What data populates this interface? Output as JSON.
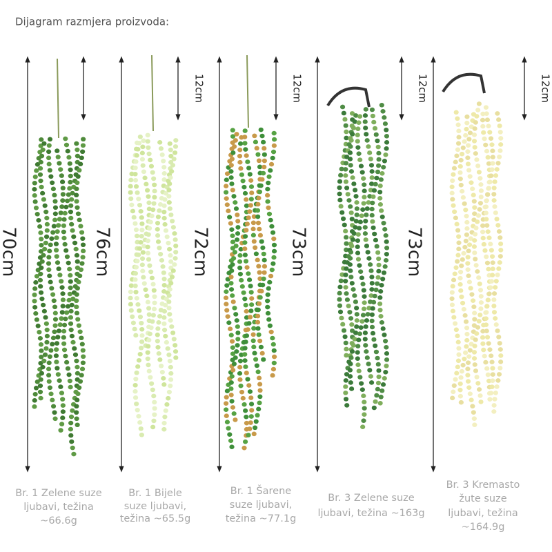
{
  "title": "Dijagram razmjera proizvoda:",
  "products": [
    {
      "length": "70cm",
      "caption": [
        "Br. 1 Zelene suze",
        "ljubavi, težina",
        "~66.6g"
      ]
    },
    {
      "length": "76cm",
      "top": "12cm",
      "caption": [
        "Br. 1 Bijele",
        "suze ljubavi,",
        "težina ~65.5g"
      ]
    },
    {
      "length": "72cm",
      "top": "12cm",
      "caption": [
        "Br. 1 Šarene",
        "suze ljubavi,",
        "težina ~77.1g"
      ]
    },
    {
      "length": "73cm",
      "top": "12cm",
      "caption": [
        "Br. 3 Zelene suze",
        "ljubavi, težina ~163g"
      ]
    },
    {
      "length": "73cm",
      "top": "12cm",
      "caption": [
        "Br. 3 Kremasto",
        "žute suze",
        "ljubavi, težina",
        "~164.9g"
      ]
    }
  ]
}
